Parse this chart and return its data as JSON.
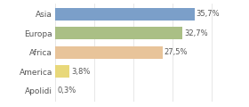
{
  "categories": [
    "Asia",
    "Europa",
    "Africa",
    "America",
    "Apolidi"
  ],
  "values": [
    35.7,
    32.7,
    27.5,
    3.8,
    0.3
  ],
  "labels": [
    "35,7%",
    "32,7%",
    "27,5%",
    "3,8%",
    "0,3%"
  ],
  "bar_colors": [
    "#7b9fc9",
    "#aabf85",
    "#e8c49a",
    "#e8d87a",
    "#e8e8e8"
  ],
  "background_color": "#ffffff",
  "xlim": [
    0,
    42
  ],
  "bar_height": 0.65,
  "label_fontsize": 6,
  "tick_fontsize": 6.5,
  "grid_color": "#dddddd"
}
